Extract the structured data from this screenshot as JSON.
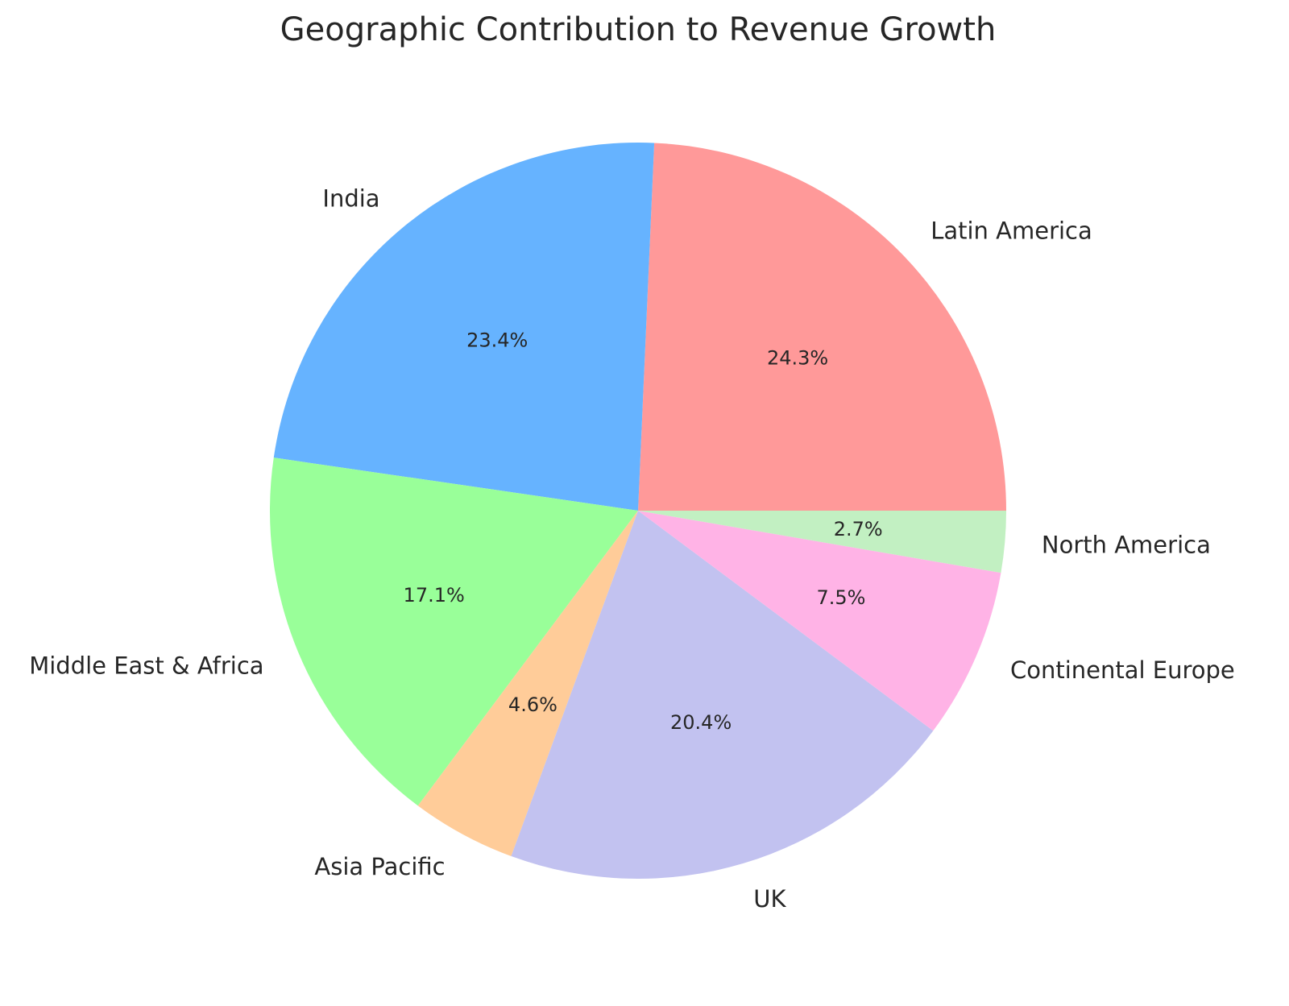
{
  "chart_data": {
    "type": "pie",
    "title": "Geographic Contribution to Revenue Growth",
    "start_angle_deg": 0,
    "direction": "counterclockwise",
    "slices": [
      {
        "label": "Latin America",
        "percent_label": "24.3%",
        "value": 24.3,
        "color": "#ff9999"
      },
      {
        "label": "India",
        "percent_label": "23.4%",
        "value": 23.4,
        "color": "#66b3ff"
      },
      {
        "label": "Middle East & Africa",
        "percent_label": "17.1%",
        "value": 17.1,
        "color": "#99ff99"
      },
      {
        "label": "Asia Pacific",
        "percent_label": "4.6%",
        "value": 4.6,
        "color": "#ffcc99"
      },
      {
        "label": "UK",
        "percent_label": "20.4%",
        "value": 20.4,
        "color": "#c2c2f0"
      },
      {
        "label": "Continental Europe",
        "percent_label": "7.5%",
        "value": 7.5,
        "color": "#ffb3e6"
      },
      {
        "label": "North America",
        "percent_label": "2.7%",
        "value": 2.7,
        "color": "#c2f0c2"
      }
    ]
  }
}
